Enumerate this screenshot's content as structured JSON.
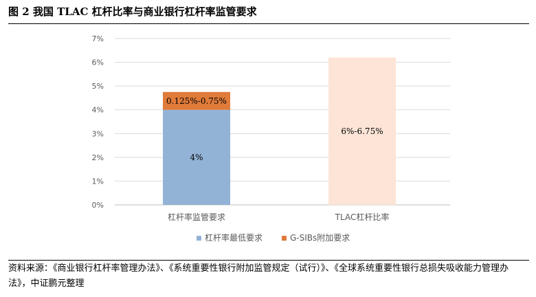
{
  "figure": {
    "title": "图 2  我国 TLAC 杠杆比率与商业银行杠杆率监管要求",
    "source": "资料来源：《商业银行杠杆率管理办法》、《系统重要性银行附加监管规定（试行）》、《全球系统重要性银行总损失吸收能力管理办法》，中证鹏元整理"
  },
  "chart_data": {
    "type": "bar",
    "stacked": true,
    "title": "",
    "xlabel": "",
    "ylabel": "",
    "ylim": [
      0,
      7
    ],
    "y_ticks": [
      "0%",
      "1%",
      "2%",
      "3%",
      "4%",
      "5%",
      "6%",
      "7%"
    ],
    "grid": true,
    "legend_position": "bottom",
    "categories": [
      "杠杆率监管要求",
      "TLAC杠杆比率"
    ],
    "series": [
      {
        "name": "杠杆率最低要求",
        "color": "#93B3D6",
        "values": [
          4,
          null
        ],
        "labels": [
          "4%",
          ""
        ]
      },
      {
        "name": "G-SIBs附加要求",
        "color": "#E07B3A",
        "values": [
          0.75,
          null
        ],
        "labels": [
          "0.125%-0.75%",
          ""
        ]
      },
      {
        "name": "",
        "color": "#FCE4D6",
        "values": [
          null,
          6.2
        ],
        "labels": [
          "",
          "6%-6.75%"
        ]
      }
    ]
  }
}
